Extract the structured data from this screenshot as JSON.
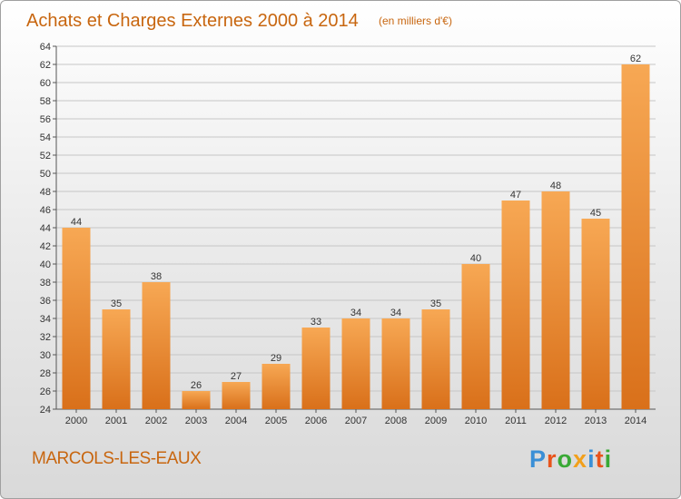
{
  "header": {
    "title": "Achats et Charges Externes 2000 à 2014",
    "subtitle": "(en milliers d'€)"
  },
  "footer": {
    "commune": "MARCOLS-LES-EAUX",
    "brand_letters": [
      "P",
      "r",
      "o",
      "x",
      "i",
      "t",
      "i"
    ],
    "brand_colors": [
      "#3a8fd6",
      "#e8541c",
      "#39a935",
      "#f2a01b",
      "#3a8fd6",
      "#e8541c",
      "#39a935"
    ]
  },
  "colors": {
    "bar_light": "#f7a854",
    "bar_dark": "#d9701a",
    "accent": "#c8660f",
    "grid": "#c6c6c6"
  },
  "chart_data": {
    "type": "bar",
    "categories": [
      "2000",
      "2001",
      "2002",
      "2003",
      "2004",
      "2005",
      "2006",
      "2007",
      "2008",
      "2009",
      "2010",
      "2011",
      "2012",
      "2013",
      "2014"
    ],
    "values": [
      44,
      35,
      38,
      26,
      27,
      29,
      33,
      34,
      34,
      35,
      40,
      47,
      48,
      45,
      62
    ],
    "ylim": [
      24,
      64
    ],
    "yticks": [
      24,
      26,
      28,
      30,
      32,
      34,
      36,
      38,
      40,
      42,
      44,
      46,
      48,
      50,
      52,
      54,
      56,
      58,
      60,
      62,
      64
    ],
    "grid": true,
    "data_labels": true
  }
}
